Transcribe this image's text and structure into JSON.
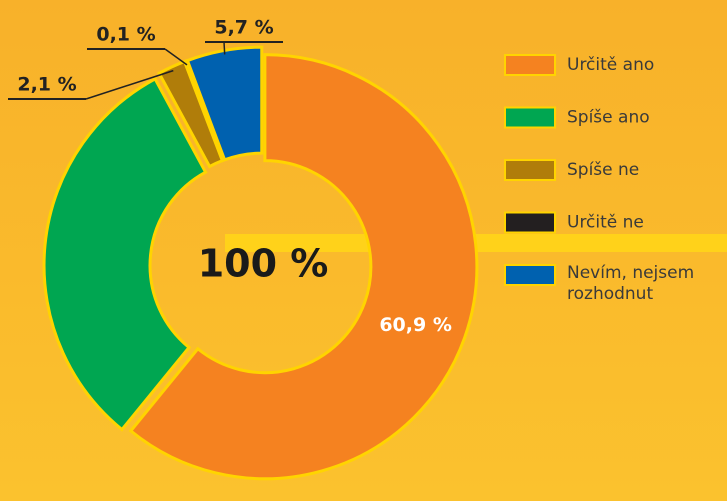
{
  "chart_data": {
    "type": "donut",
    "center_label": "100 %",
    "categories": [
      "Určitě ano",
      "Spíše ano",
      "Spíše ne",
      "Určitě ne",
      "Nevím, nejsem rozhodnut"
    ],
    "values": [
      60.9,
      31.2,
      2.1,
      0.1,
      5.7
    ],
    "value_labels": [
      "60,9 %",
      null,
      "2,1 %",
      "0,1 %",
      "5,7 %"
    ],
    "colors": [
      "#f58220",
      "#00a651",
      "#b07d0a",
      "#231f20",
      "#0061af"
    ],
    "legend": "right"
  }
}
